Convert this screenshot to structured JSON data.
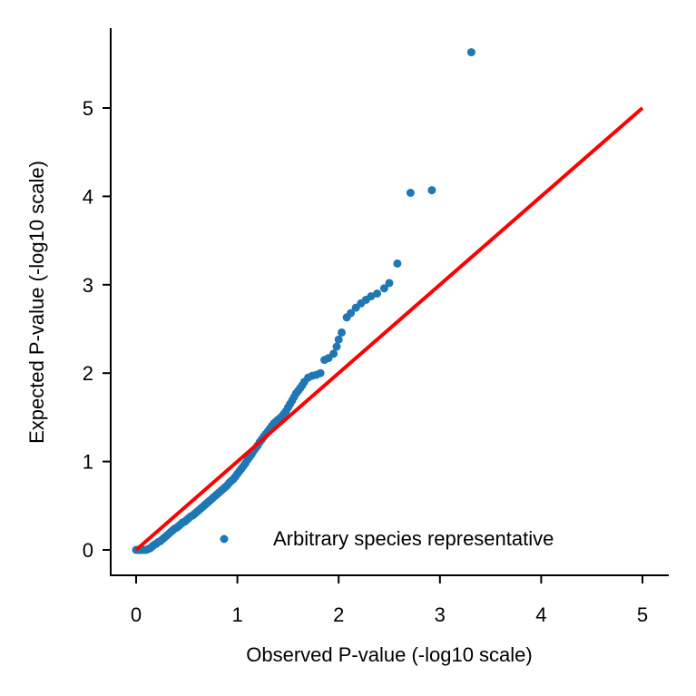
{
  "chart_data": {
    "type": "scatter",
    "xlabel": "Observed P-value (-log10 scale)",
    "ylabel": "Expected P-value (-log10 scale)",
    "xlim": [
      -0.25,
      5.25
    ],
    "ylim": [
      -0.28,
      5.9
    ],
    "xticks": [
      "0",
      "1",
      "2",
      "3",
      "4",
      "5"
    ],
    "yticks": [
      "0",
      "1",
      "2",
      "3",
      "4",
      "5"
    ],
    "grid": false,
    "legend_position": "lower-right",
    "series": [
      {
        "name": "Arbitrary species representative",
        "color": "#1f77b4",
        "points": [
          [
            0.0,
            0.0
          ],
          [
            0.02,
            0.0
          ],
          [
            0.04,
            0.0
          ],
          [
            0.06,
            0.0
          ],
          [
            0.08,
            0.0
          ],
          [
            0.1,
            0.0
          ],
          [
            0.12,
            0.01
          ],
          [
            0.14,
            0.02
          ],
          [
            0.16,
            0.04
          ],
          [
            0.18,
            0.06
          ],
          [
            0.2,
            0.07
          ],
          [
            0.22,
            0.09
          ],
          [
            0.24,
            0.1
          ],
          [
            0.26,
            0.12
          ],
          [
            0.28,
            0.14
          ],
          [
            0.3,
            0.16
          ],
          [
            0.32,
            0.18
          ],
          [
            0.34,
            0.2
          ],
          [
            0.36,
            0.22
          ],
          [
            0.38,
            0.24
          ],
          [
            0.4,
            0.25
          ],
          [
            0.42,
            0.27
          ],
          [
            0.44,
            0.29
          ],
          [
            0.46,
            0.31
          ],
          [
            0.48,
            0.32
          ],
          [
            0.5,
            0.34
          ],
          [
            0.52,
            0.36
          ],
          [
            0.54,
            0.38
          ],
          [
            0.56,
            0.39
          ],
          [
            0.58,
            0.41
          ],
          [
            0.6,
            0.43
          ],
          [
            0.62,
            0.45
          ],
          [
            0.64,
            0.47
          ],
          [
            0.66,
            0.49
          ],
          [
            0.68,
            0.51
          ],
          [
            0.7,
            0.53
          ],
          [
            0.72,
            0.55
          ],
          [
            0.74,
            0.57
          ],
          [
            0.76,
            0.59
          ],
          [
            0.78,
            0.61
          ],
          [
            0.8,
            0.63
          ],
          [
            0.82,
            0.65
          ],
          [
            0.84,
            0.67
          ],
          [
            0.86,
            0.69
          ],
          [
            0.88,
            0.71
          ],
          [
            0.9,
            0.73
          ],
          [
            0.92,
            0.76
          ],
          [
            0.94,
            0.78
          ],
          [
            0.96,
            0.8
          ],
          [
            0.98,
            0.83
          ],
          [
            1.0,
            0.86
          ],
          [
            1.02,
            0.89
          ],
          [
            1.04,
            0.92
          ],
          [
            1.06,
            0.95
          ],
          [
            1.08,
            0.98
          ],
          [
            1.1,
            1.02
          ],
          [
            1.12,
            1.05
          ],
          [
            1.14,
            1.08
          ],
          [
            1.16,
            1.12
          ],
          [
            1.18,
            1.15
          ],
          [
            1.2,
            1.18
          ],
          [
            1.22,
            1.22
          ],
          [
            1.24,
            1.25
          ],
          [
            1.26,
            1.28
          ],
          [
            1.28,
            1.31
          ],
          [
            1.3,
            1.34
          ],
          [
            1.32,
            1.37
          ],
          [
            1.34,
            1.4
          ],
          [
            1.36,
            1.43
          ],
          [
            1.38,
            1.45
          ],
          [
            1.4,
            1.47
          ],
          [
            1.42,
            1.49
          ],
          [
            1.44,
            1.51
          ],
          [
            1.46,
            1.54
          ],
          [
            1.48,
            1.57
          ],
          [
            1.5,
            1.61
          ],
          [
            1.52,
            1.65
          ],
          [
            1.54,
            1.69
          ],
          [
            1.56,
            1.73
          ],
          [
            1.58,
            1.77
          ],
          [
            1.6,
            1.8
          ],
          [
            1.62,
            1.83
          ],
          [
            1.64,
            1.86
          ],
          [
            1.66,
            1.9
          ],
          [
            1.7,
            1.95
          ],
          [
            1.74,
            1.97
          ],
          [
            1.78,
            1.98
          ],
          [
            1.82,
            2.0
          ],
          [
            1.86,
            2.15
          ],
          [
            1.9,
            2.17
          ],
          [
            1.95,
            2.22
          ],
          [
            1.98,
            2.3
          ],
          [
            2.0,
            2.38
          ],
          [
            2.03,
            2.46
          ],
          [
            2.08,
            2.63
          ],
          [
            2.12,
            2.68
          ],
          [
            2.17,
            2.74
          ],
          [
            2.22,
            2.79
          ],
          [
            2.27,
            2.83
          ],
          [
            2.32,
            2.87
          ],
          [
            2.38,
            2.9
          ],
          [
            2.45,
            2.96
          ],
          [
            2.5,
            3.02
          ],
          [
            2.58,
            3.24
          ],
          [
            2.71,
            4.04
          ],
          [
            2.92,
            4.07
          ],
          [
            3.31,
            5.63
          ]
        ]
      },
      {
        "name": "",
        "type": "line",
        "color": "#ff0000",
        "points": [
          [
            0,
            0
          ],
          [
            5,
            5
          ]
        ]
      }
    ]
  }
}
